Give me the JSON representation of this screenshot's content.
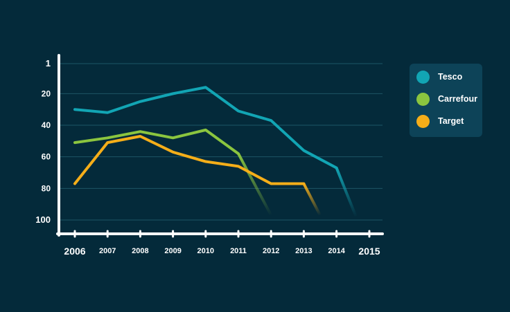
{
  "chart_data": {
    "type": "line",
    "x": [
      "2006",
      "2007",
      "2008",
      "2009",
      "2010",
      "2011",
      "2012",
      "2013",
      "2014",
      "2015"
    ],
    "y_ticks": [
      "1",
      "20",
      "40",
      "60",
      "80",
      "100"
    ],
    "y_tick_values": [
      1,
      20,
      40,
      60,
      80,
      100
    ],
    "y_reversed": true,
    "ylim": [
      1,
      108
    ],
    "grid": true,
    "legend_position": "top-right",
    "series": [
      {
        "name": "Tesco",
        "color": "#12a5b4",
        "points": [
          [
            2006,
            30
          ],
          [
            2007,
            32
          ],
          [
            2008,
            25
          ],
          [
            2009,
            20
          ],
          [
            2010,
            16
          ],
          [
            2011,
            31
          ],
          [
            2012,
            37
          ],
          [
            2013,
            56
          ],
          [
            2014,
            67
          ],
          [
            2014.6,
            98
          ]
        ],
        "fade_last": true
      },
      {
        "name": "Carrefour",
        "color": "#8bc53f",
        "points": [
          [
            2006,
            51
          ],
          [
            2007,
            48
          ],
          [
            2008,
            44
          ],
          [
            2009,
            48
          ],
          [
            2010,
            43
          ],
          [
            2011,
            58
          ],
          [
            2012,
            97
          ]
        ],
        "fade_last": true
      },
      {
        "name": "Target",
        "color": "#f5ae19",
        "points": [
          [
            2006,
            77
          ],
          [
            2007,
            51
          ],
          [
            2008,
            47
          ],
          [
            2009,
            57
          ],
          [
            2010,
            63
          ],
          [
            2011,
            66
          ],
          [
            2012,
            77
          ],
          [
            2013,
            77
          ],
          [
            2013.5,
            97
          ]
        ],
        "fade_last": true
      }
    ]
  },
  "legend": {
    "items": [
      {
        "label": "Tesco",
        "color": "#12a5b4"
      },
      {
        "label": "Carrefour",
        "color": "#8bc53f"
      },
      {
        "label": "Target",
        "color": "#f5ae19"
      }
    ]
  },
  "colors": {
    "background": "#042a3a",
    "grid": "#1d5566",
    "axis": "#ffffff",
    "legend_bg": "#0d4358"
  }
}
